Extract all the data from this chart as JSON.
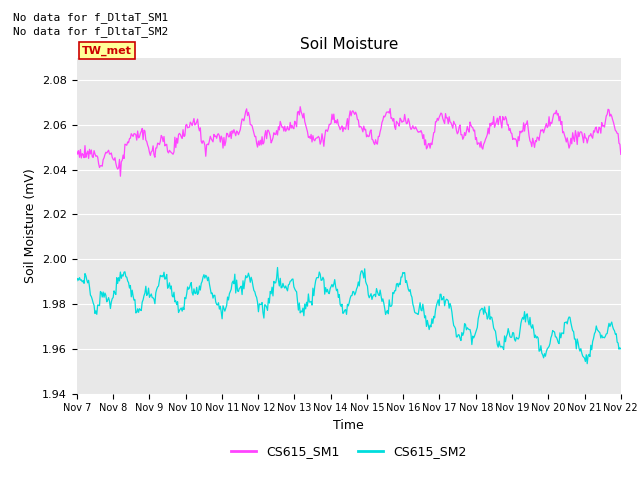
{
  "title": "Soil Moisture",
  "xlabel": "Time",
  "ylabel": "Soil Moisture (mV)",
  "ylim": [
    1.94,
    2.09
  ],
  "xlim": [
    0,
    15
  ],
  "figure_bg": "#ffffff",
  "plot_bg": "#e8e8e8",
  "top_text": [
    "No data for f_DltaT_SM1",
    "No data for f_DltaT_SM2"
  ],
  "annotation_box_text": "TW_met",
  "annotation_box_color": "#ffff99",
  "annotation_box_edge_color": "#cc0000",
  "xtick_labels": [
    "Nov 7",
    "Nov 8",
    "Nov 9",
    "Nov 10",
    "Nov 11",
    "Nov 12",
    "Nov 13",
    "Nov 14",
    "Nov 15",
    "Nov 16",
    "Nov 17",
    "Nov 18",
    "Nov 19",
    "Nov 20",
    "Nov 21",
    "Nov 22"
  ],
  "ytick_values": [
    1.94,
    1.96,
    1.98,
    2.0,
    2.02,
    2.04,
    2.06,
    2.08
  ],
  "line1_color": "#ff44ff",
  "line2_color": "#00dddd",
  "legend_labels": [
    "CS615_SM1",
    "CS615_SM2"
  ]
}
